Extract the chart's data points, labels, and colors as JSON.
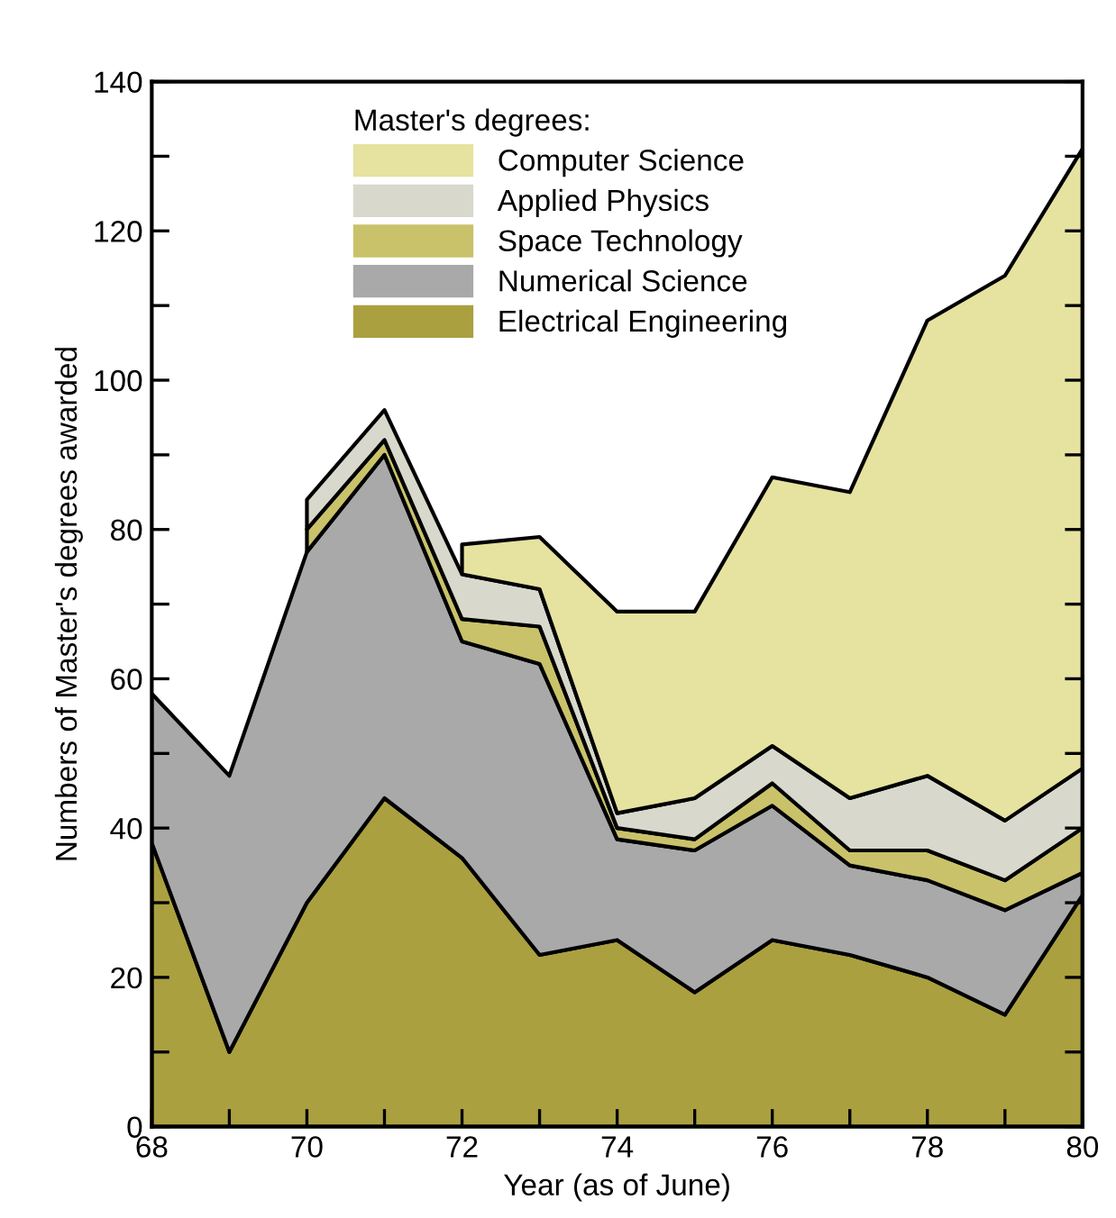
{
  "chart_data": {
    "type": "area",
    "stacked": true,
    "xlabel": "Year (as of June)",
    "ylabel": "Numbers of Master's degrees awarded",
    "legend_title": "Master's degrees:",
    "legend": "top",
    "grid": false,
    "x": [
      68,
      69,
      70,
      71,
      72,
      73,
      74,
      75,
      76,
      77,
      78,
      79,
      80
    ],
    "xlim": [
      68,
      80
    ],
    "ylim": [
      0,
      140
    ],
    "xticks": [
      68,
      {
        "value": 69,
        "label": null
      },
      70,
      {
        "value": 71,
        "label": null
      },
      72,
      {
        "value": 73,
        "label": null
      },
      74,
      {
        "value": 75,
        "label": null
      },
      76,
      {
        "value": 77,
        "label": null
      },
      78,
      {
        "value": 79,
        "label": null
      },
      80
    ],
    "yticks": [
      0,
      {
        "value": 10,
        "label": null
      },
      20,
      {
        "value": 30,
        "label": null
      },
      40,
      {
        "value": 50,
        "label": null
      },
      60,
      {
        "value": 70,
        "label": null
      },
      80,
      {
        "value": 90,
        "label": null
      },
      100,
      {
        "value": 110,
        "label": null
      },
      120,
      {
        "value": 130,
        "label": null
      },
      140
    ],
    "series": [
      {
        "name": "Electrical Engineering",
        "color": "#aaa040",
        "values": [
          38,
          10,
          30,
          44,
          36,
          23,
          25,
          18,
          25,
          23,
          20,
          15,
          31
        ]
      },
      {
        "name": "Numerical Science",
        "color": "#a9a9a9",
        "values": [
          20,
          37,
          47,
          46,
          29,
          39,
          13.5,
          19,
          18,
          12,
          13,
          14,
          3
        ]
      },
      {
        "name": "Space Technology",
        "color": "#c9c26a",
        "values": [
          null,
          null,
          3,
          2,
          3,
          5,
          1.5,
          1.5,
          3,
          2,
          4,
          4,
          6
        ]
      },
      {
        "name": "Applied Physics",
        "color": "#d8d8cc",
        "values": [
          null,
          null,
          4,
          4,
          6,
          5,
          2,
          5.5,
          5,
          7,
          10,
          8,
          8
        ]
      },
      {
        "name": "Computer Science",
        "color": "#e6e2a0",
        "values": [
          null,
          null,
          null,
          null,
          4,
          7,
          27,
          25,
          36,
          41,
          61,
          73,
          83
        ]
      }
    ]
  }
}
